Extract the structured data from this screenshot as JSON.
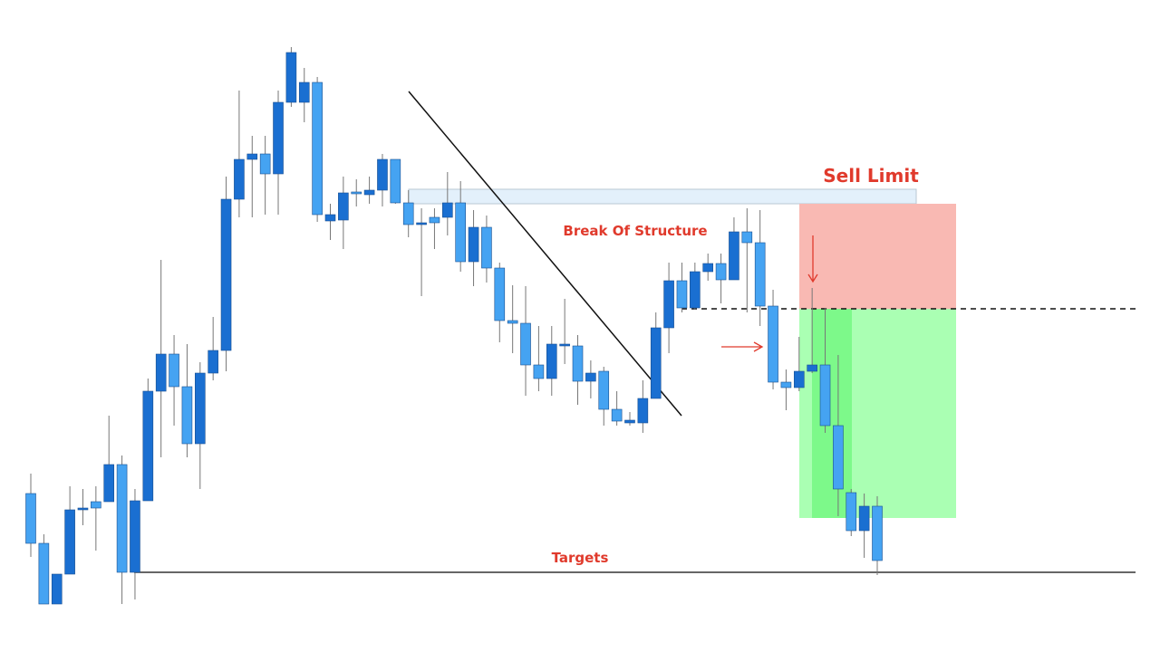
{
  "chart_data": {
    "type": "candlestick",
    "annotations": {
      "sell_limit": "Sell Limit",
      "break_of_structure": "Break Of Structure",
      "targets": "Targets"
    },
    "up_color": "#1a6fd1",
    "down_color": "#45a3f2",
    "ylim": [
      0,
      720
    ],
    "open": [
      175,
      120,
      53,
      86,
      157,
      166,
      166,
      207,
      88,
      167,
      288,
      329,
      293,
      230,
      308,
      333,
      500,
      544,
      550,
      528,
      607,
      607,
      629,
      476,
      477,
      508,
      505,
      510,
      544,
      496,
      472,
      480,
      480,
      496,
      431,
      469,
      424,
      366,
      363,
      317,
      302,
      338,
      338,
      299,
      310,
      268,
      253,
      253,
      280,
      358,
      410,
      380,
      420,
      429,
      411,
      464,
      452,
      382,
      298,
      292,
      310,
      317,
      250,
      176,
      134,
      161
    ],
    "high": [
      197,
      130,
      86,
      183,
      180,
      183,
      261,
      217,
      180,
      302,
      433,
      350,
      340,
      320,
      370,
      525,
      620,
      570,
      570,
      620,
      668,
      645,
      635,
      495,
      525,
      522,
      525,
      550,
      544,
      510,
      490,
      490,
      530,
      520,
      488,
      482,
      430,
      405,
      404,
      360,
      360,
      390,
      350,
      322,
      315,
      288,
      265,
      300,
      375,
      430,
      430,
      430,
      440,
      440,
      480,
      490,
      488,
      400,
      312,
      348,
      402,
      380,
      328,
      180,
      175,
      172
    ],
    "low": [
      105,
      53,
      53,
      86,
      140,
      112,
      166,
      53,
      58,
      167,
      215,
      250,
      215,
      180,
      300,
      310,
      480,
      480,
      483,
      483,
      602,
      585,
      475,
      455,
      445,
      492,
      495,
      492,
      495,
      458,
      393,
      445,
      460,
      420,
      404,
      408,
      342,
      330,
      283,
      288,
      283,
      318,
      273,
      280,
      250,
      250,
      250,
      242,
      280,
      330,
      375,
      378,
      410,
      385,
      411,
      375,
      360,
      290,
      267,
      288,
      308,
      242,
      150,
      128,
      104,
      85
    ],
    "close": [
      120,
      53,
      86,
      157,
      159,
      159,
      207,
      88,
      167,
      288,
      329,
      293,
      230,
      308,
      333,
      500,
      544,
      550,
      528,
      607,
      662,
      629,
      483,
      483,
      507,
      506,
      510,
      544,
      496,
      472,
      474,
      474,
      496,
      431,
      469,
      424,
      366,
      363,
      317,
      302,
      340,
      340,
      299,
      308,
      268,
      255,
      256,
      280,
      358,
      410,
      380,
      420,
      429,
      411,
      464,
      452,
      382,
      298,
      292,
      310,
      317,
      250,
      180,
      134,
      161,
      101
    ]
  }
}
